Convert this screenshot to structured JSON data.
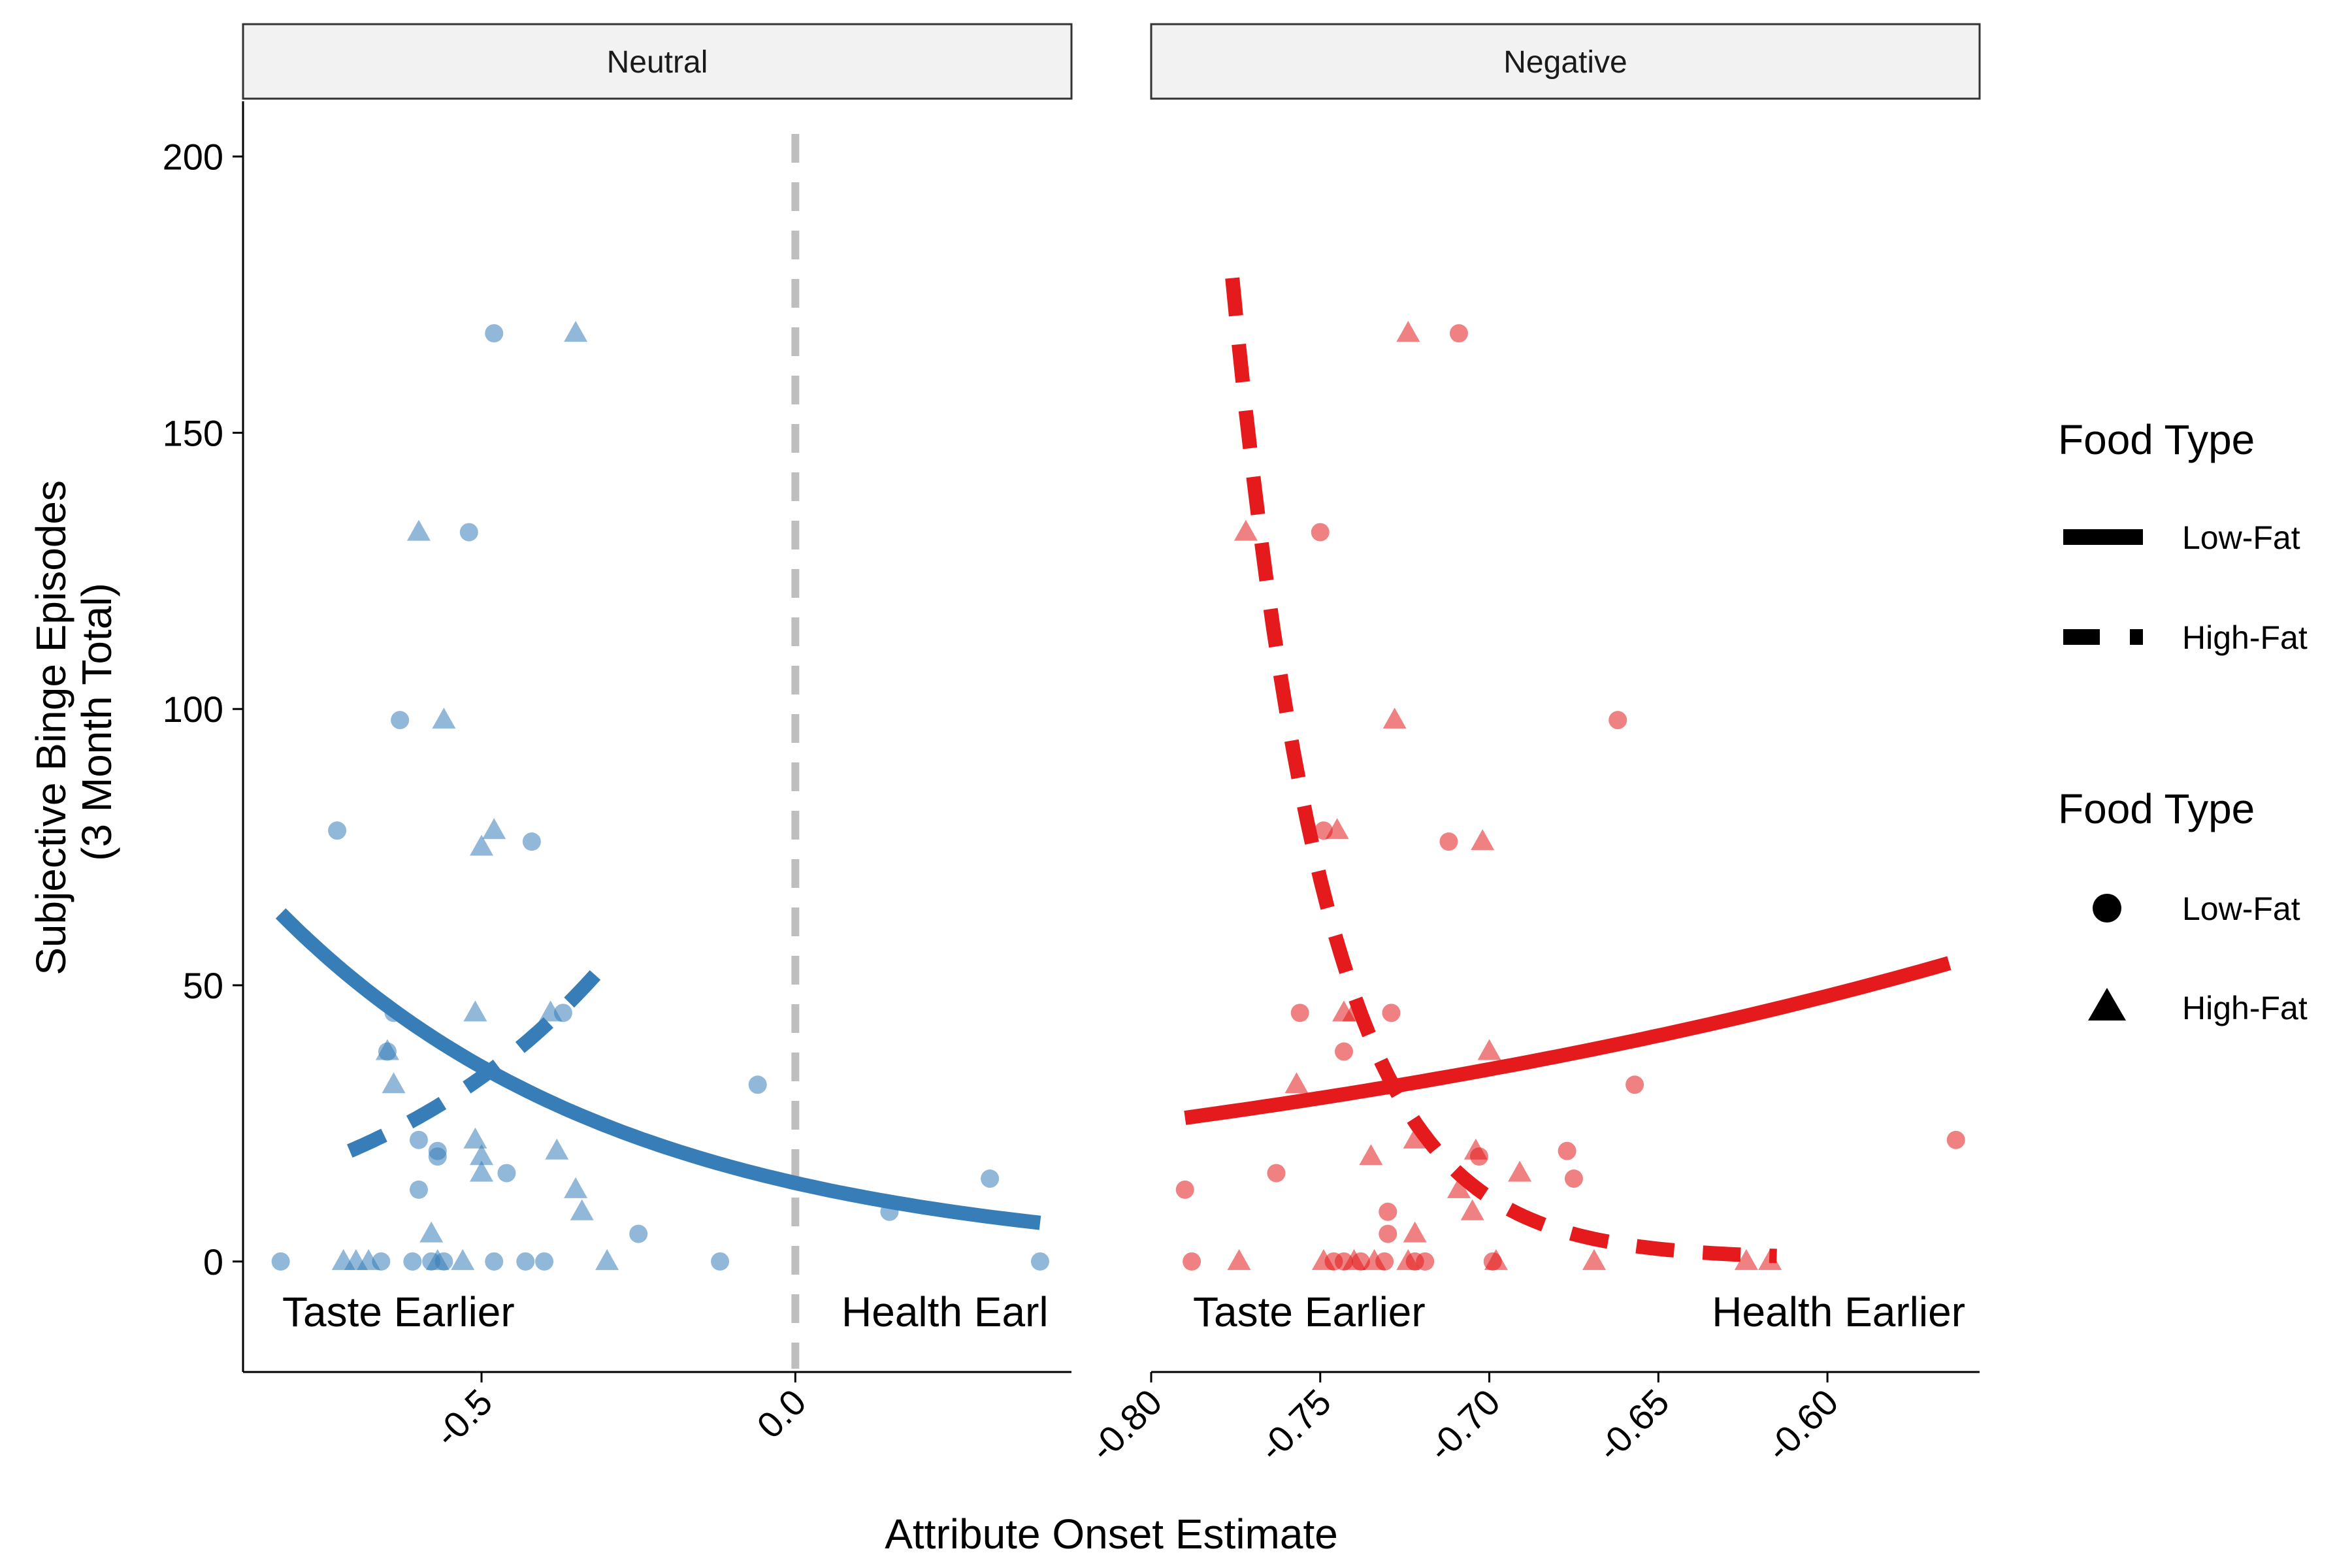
{
  "chart_data": {
    "type": "scatter",
    "x_title": "Attribute Onset Estimate",
    "y_title_lines": [
      "Subjective Binge Episodes",
      "(3 Month Total)"
    ],
    "y_ticks": [
      0,
      50,
      100,
      150,
      200
    ],
    "y_tick_labels": [
      "0",
      "50",
      "100",
      "150",
      "200"
    ],
    "ylim": [
      -20,
      210
    ],
    "legend": {
      "placement": "right",
      "linetype": {
        "title": "Food Type",
        "items": [
          {
            "label": "Low-Fat",
            "style": "solid"
          },
          {
            "label": "High-Fat",
            "style": "dashed"
          }
        ]
      },
      "shape": {
        "title": "Food Type",
        "items": [
          {
            "label": "Low-Fat",
            "shape": "circle"
          },
          {
            "label": "High-Fat",
            "shape": "triangle"
          }
        ]
      }
    },
    "panels": [
      {
        "strip": "Neutral",
        "color": "#377eb8",
        "xlim": [
          -0.88,
          0.44
        ],
        "x_ticks": [
          -0.5,
          0.0
        ],
        "x_tick_labels": [
          "-0.5",
          "0.0"
        ],
        "ref_line_x": 0.0,
        "left_label": "Taste Earlier",
        "right_label": "Health Earl",
        "low_fat_points": [
          [
            -0.82,
            0
          ],
          [
            -0.66,
            0
          ],
          [
            -0.61,
            0
          ],
          [
            -0.58,
            0
          ],
          [
            -0.56,
            0
          ],
          [
            -0.48,
            0
          ],
          [
            -0.43,
            0
          ],
          [
            -0.4,
            0
          ],
          [
            -0.12,
            0
          ],
          [
            0.39,
            0
          ],
          [
            -0.25,
            5
          ],
          [
            0.15,
            9
          ],
          [
            -0.6,
            13
          ],
          [
            0.31,
            15
          ],
          [
            -0.46,
            16
          ],
          [
            -0.57,
            19
          ],
          [
            -0.57,
            20
          ],
          [
            -0.6,
            22
          ],
          [
            -0.06,
            32
          ],
          [
            -0.65,
            38
          ],
          [
            -0.64,
            45
          ],
          [
            -0.37,
            45
          ],
          [
            -0.73,
            78
          ],
          [
            -0.42,
            76
          ],
          [
            -0.63,
            98
          ],
          [
            -0.52,
            132
          ],
          [
            -0.48,
            168
          ]
        ],
        "high_fat_points": [
          [
            -0.72,
            0
          ],
          [
            -0.7,
            0
          ],
          [
            -0.68,
            0
          ],
          [
            -0.57,
            0
          ],
          [
            -0.53,
            0
          ],
          [
            -0.3,
            0
          ],
          [
            -0.58,
            5
          ],
          [
            -0.34,
            9
          ],
          [
            -0.35,
            13
          ],
          [
            -0.5,
            16
          ],
          [
            -0.5,
            19
          ],
          [
            -0.51,
            22
          ],
          [
            -0.38,
            20
          ],
          [
            -0.64,
            32
          ],
          [
            -0.65,
            38
          ],
          [
            -0.51,
            45
          ],
          [
            -0.39,
            45
          ],
          [
            -0.5,
            75
          ],
          [
            -0.48,
            78
          ],
          [
            -0.56,
            98
          ],
          [
            -0.6,
            132
          ],
          [
            -0.35,
            168
          ]
        ],
        "low_fat_fit": {
          "x_start": -0.82,
          "x_end": 0.39,
          "y_start": 63,
          "y_end": 7
        },
        "high_fat_fit": {
          "x_start": -0.71,
          "x_end": -0.31,
          "y_start": 20,
          "y_end": 53
        }
      },
      {
        "strip": "Negative",
        "color": "#e41a1c",
        "xlim": [
          -0.8,
          -0.555
        ],
        "x_ticks": [
          -0.8,
          -0.75,
          -0.7,
          -0.65,
          -0.6
        ],
        "x_tick_labels": [
          "-0.80",
          "-0.75",
          "-0.70",
          "-0.65",
          "-0.60"
        ],
        "left_label": "Taste Earlier",
        "right_label": "Health Earlier",
        "low_fat_points": [
          [
            -0.788,
            0
          ],
          [
            -0.746,
            0
          ],
          [
            -0.743,
            0
          ],
          [
            -0.738,
            0
          ],
          [
            -0.731,
            0
          ],
          [
            -0.722,
            0
          ],
          [
            -0.719,
            0
          ],
          [
            -0.699,
            0
          ],
          [
            -0.73,
            5
          ],
          [
            -0.73,
            9
          ],
          [
            -0.79,
            13
          ],
          [
            -0.675,
            15
          ],
          [
            -0.763,
            16
          ],
          [
            -0.703,
            19
          ],
          [
            -0.677,
            20
          ],
          [
            -0.562,
            22
          ],
          [
            -0.657,
            32
          ],
          [
            -0.743,
            38
          ],
          [
            -0.756,
            45
          ],
          [
            -0.729,
            45
          ],
          [
            -0.662,
            98
          ],
          [
            -0.712,
            76
          ],
          [
            -0.749,
            78
          ],
          [
            -0.75,
            132
          ],
          [
            -0.709,
            168
          ]
        ],
        "high_fat_points": [
          [
            -0.774,
            0
          ],
          [
            -0.749,
            0
          ],
          [
            -0.74,
            0
          ],
          [
            -0.734,
            0
          ],
          [
            -0.724,
            0
          ],
          [
            -0.698,
            0
          ],
          [
            -0.669,
            0
          ],
          [
            -0.624,
            0
          ],
          [
            -0.617,
            0
          ],
          [
            -0.722,
            5
          ],
          [
            -0.705,
            9
          ],
          [
            -0.709,
            13
          ],
          [
            -0.691,
            16
          ],
          [
            -0.735,
            19
          ],
          [
            -0.704,
            20
          ],
          [
            -0.722,
            22
          ],
          [
            -0.757,
            32
          ],
          [
            -0.7,
            38
          ],
          [
            -0.743,
            45
          ],
          [
            -0.74,
            45
          ],
          [
            -0.745,
            78
          ],
          [
            -0.702,
            76
          ],
          [
            -0.728,
            98
          ],
          [
            -0.772,
            132
          ],
          [
            -0.724,
            168
          ]
        ],
        "low_fat_fit": {
          "x_start": -0.79,
          "x_end": -0.564,
          "y_start": 26,
          "y_end": 54
        },
        "high_fat_fit": {
          "x_start": -0.776,
          "x_end": -0.615,
          "y_start": 178,
          "y_end": 1,
          "decay": 30
        }
      }
    ]
  }
}
